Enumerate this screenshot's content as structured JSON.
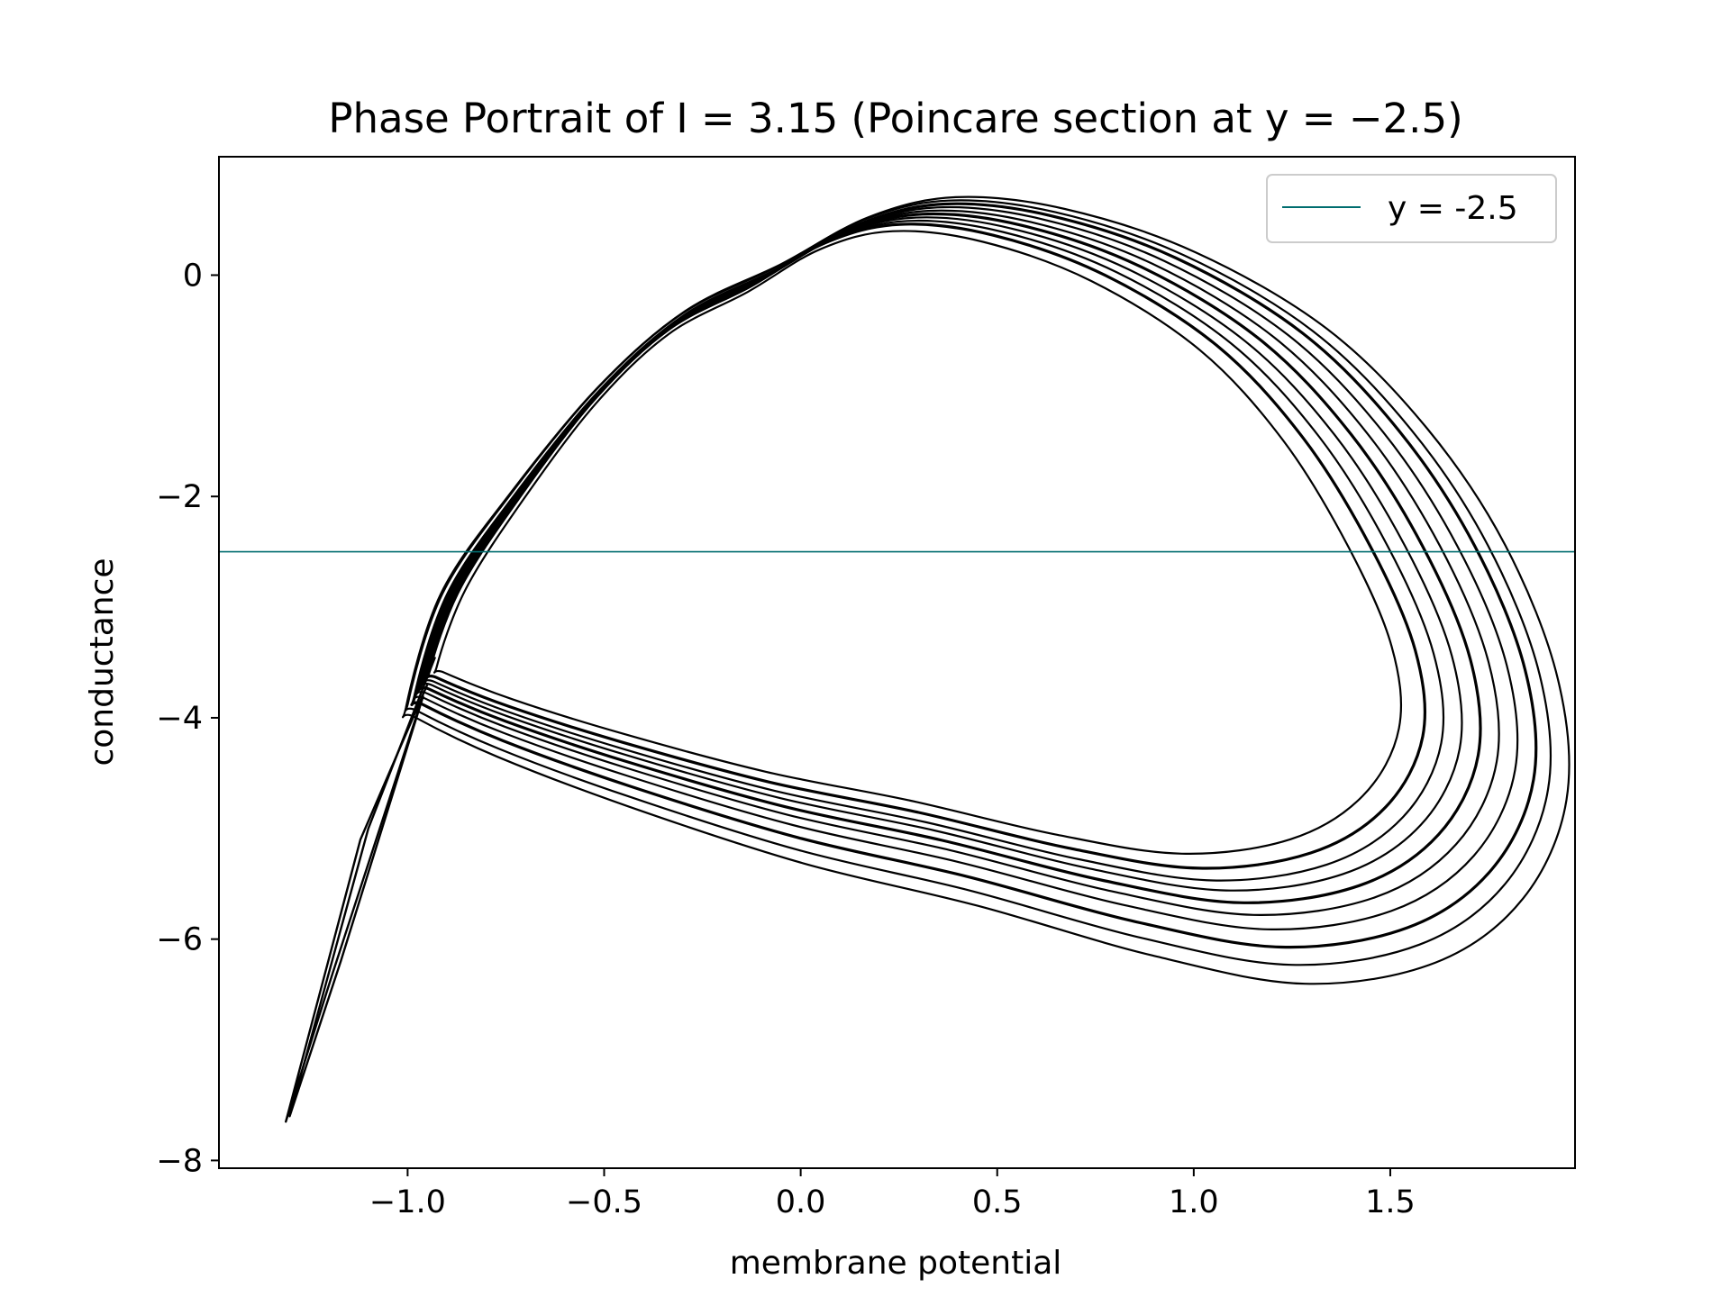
{
  "chart_data": {
    "type": "line",
    "title": "Phase Portrait of I = 3.15 (Poincare section at y = −2.5)",
    "xlabel": "membrane potential",
    "ylabel": "conductance",
    "xlim": [
      -1.48,
      1.97
    ],
    "ylim": [
      -8.07,
      1.07
    ],
    "xticks": [
      -1.0,
      -0.5,
      0.0,
      0.5,
      1.0,
      1.5
    ],
    "xtick_labels": [
      "−1.0",
      "−0.5",
      "0.0",
      "0.5",
      "1.0",
      "1.5"
    ],
    "yticks": [
      0,
      -2,
      -4,
      -6,
      -8
    ],
    "ytick_labels": [
      "0",
      "−2",
      "−4",
      "−6",
      "−8"
    ],
    "grid": false,
    "legend": {
      "placement": "upper right",
      "entries": [
        {
          "label": "y = -2.5",
          "color": "#006d6f"
        }
      ]
    },
    "series": [
      {
        "name": "y = -2.5",
        "kind": "horizontal-line",
        "y": -2.5,
        "color": "#006d6f"
      },
      {
        "kind": "trajectory-loops",
        "color": "#000000",
        "base_loop_points": [
          [
            -0.96,
            -3.65
          ],
          [
            -0.88,
            -2.85
          ],
          [
            -0.72,
            -2.0
          ],
          [
            -0.52,
            -1.1
          ],
          [
            -0.32,
            -0.45
          ],
          [
            -0.1,
            -0.05
          ],
          [
            0.1,
            0.35
          ],
          [
            0.3,
            0.52
          ],
          [
            0.55,
            0.42
          ],
          [
            0.85,
            0.05
          ],
          [
            1.15,
            -0.6
          ],
          [
            1.38,
            -1.45
          ],
          [
            1.56,
            -2.45
          ],
          [
            1.68,
            -3.45
          ],
          [
            1.7,
            -4.3
          ],
          [
            1.6,
            -5.0
          ],
          [
            1.4,
            -5.45
          ],
          [
            1.1,
            -5.6
          ],
          [
            0.75,
            -5.4
          ],
          [
            0.35,
            -5.05
          ],
          [
            -0.05,
            -4.75
          ],
          [
            -0.45,
            -4.35
          ],
          [
            -0.75,
            -4.0
          ],
          [
            -0.94,
            -3.72
          ]
        ],
        "loop_variants": [
          {
            "dx": -0.07,
            "dy": 0.25,
            "sx": 0.92,
            "sy": 0.96
          },
          {
            "dx": -0.05,
            "dy": 0.18,
            "sx": 0.95,
            "sy": 0.98
          },
          {
            "dx": -0.03,
            "dy": 0.1,
            "sx": 0.97,
            "sy": 0.99
          },
          {
            "dx": -0.01,
            "dy": 0.04,
            "sx": 0.99,
            "sy": 1.0
          },
          {
            "dx": 0.01,
            "dy": -0.04,
            "sx": 1.01,
            "sy": 1.01
          },
          {
            "dx": 0.03,
            "dy": -0.12,
            "sx": 1.03,
            "sy": 1.02
          },
          {
            "dx": 0.05,
            "dy": -0.22,
            "sx": 1.05,
            "sy": 1.03
          },
          {
            "dx": 0.07,
            "dy": -0.35,
            "sx": 1.07,
            "sy": 1.04
          },
          {
            "dx": 0.08,
            "dy": -0.48,
            "sx": 1.09,
            "sy": 1.05
          },
          {
            "dx": 0.1,
            "dy": -0.62,
            "sx": 1.11,
            "sy": 1.06
          }
        ],
        "spike_paths": [
          [
            [
              -0.93,
              -3.45
            ],
            [
              -1.1,
              -5.0
            ],
            [
              -1.3,
              -7.6
            ],
            [
              -1.17,
              -6.2
            ],
            [
              -0.96,
              -3.8
            ]
          ],
          [
            [
              -0.95,
              -3.7
            ],
            [
              -1.12,
              -5.1
            ],
            [
              -1.31,
              -7.65
            ],
            [
              -1.19,
              -6.3
            ],
            [
              -0.97,
              -3.9
            ]
          ]
        ]
      }
    ]
  }
}
